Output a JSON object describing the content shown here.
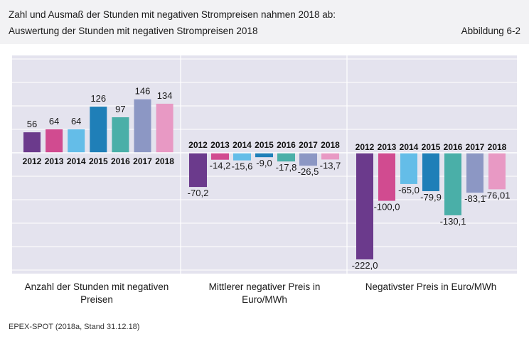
{
  "header": {
    "title_line1": "Zahl und Ausmaß der Stunden mit negativen Strompreisen nahmen 2018 ab:",
    "title_line2": "Auswertung der Stunden mit negativen Strompreisen 2018",
    "figure_label": "Abbildung 6-2"
  },
  "footer": {
    "source": "EPEX-SPOT (2018a, Stand 31.12.18)"
  },
  "colors": {
    "panel_bg": "#e4e3ee",
    "grid": "#ffffff",
    "header_bg": "#f2f2f4",
    "years": [
      "#6b3a8c",
      "#d14b90",
      "#64bde8",
      "#1f7fb8",
      "#4aafa8",
      "#8c97c4",
      "#e899c4"
    ]
  },
  "chart_data": [
    {
      "type": "bar",
      "label": "Anzahl der Stunden mit negativen Preisen",
      "categories": [
        "2012",
        "2013",
        "2014",
        "2015",
        "2016",
        "2017",
        "2018"
      ],
      "values": [
        56,
        64,
        64,
        126,
        97,
        146,
        134
      ],
      "value_labels": [
        "56",
        "64",
        "64",
        "126",
        "97",
        "146",
        "134"
      ]
    },
    {
      "type": "bar",
      "label": "Mittlerer negativer Preis in Euro/MWh",
      "categories": [
        "2012",
        "2013",
        "2014",
        "2015",
        "2016",
        "2017",
        "2018"
      ],
      "values": [
        -70.2,
        -14.2,
        -15.6,
        -9.0,
        -17.8,
        -26.5,
        -13.7
      ],
      "value_labels": [
        "-70,2",
        "-14,2",
        "-15,6",
        "-9,0",
        "-17,8",
        "-26,5",
        "-13,7"
      ]
    },
    {
      "type": "bar",
      "label": "Negativster Preis in Euro/MWh",
      "categories": [
        "2012",
        "2013",
        "2014",
        "2015",
        "2016",
        "2017",
        "2018"
      ],
      "values": [
        -222.0,
        -100.0,
        -65.0,
        -79.9,
        -130.1,
        -83.1,
        -76.01
      ],
      "value_labels": [
        "-222,0",
        "-100,0",
        "-65,0",
        "-79,9",
        "-130,1",
        "-83,1",
        "-76,01"
      ]
    }
  ]
}
